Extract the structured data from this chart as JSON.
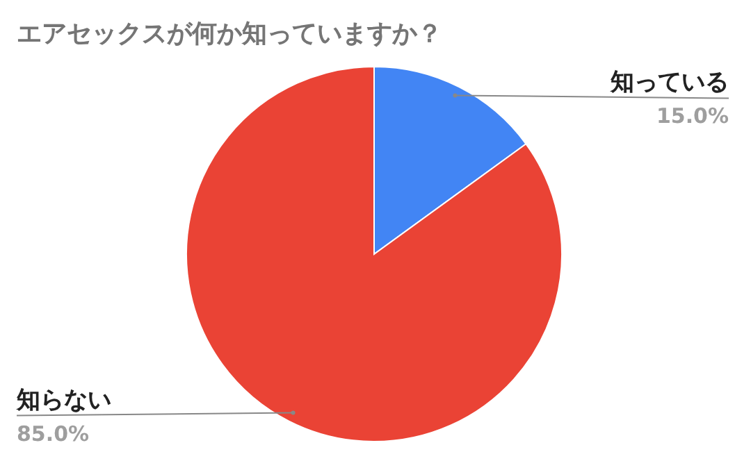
{
  "chart_data": {
    "type": "pie",
    "title": "エアセックスが何か知っていますか？",
    "categories": [
      "知っている",
      "知らない"
    ],
    "values": [
      15,
      85
    ],
    "colors": [
      "#4285f4",
      "#ea4335"
    ],
    "value_labels": [
      "15.0%",
      "85.0%"
    ]
  }
}
